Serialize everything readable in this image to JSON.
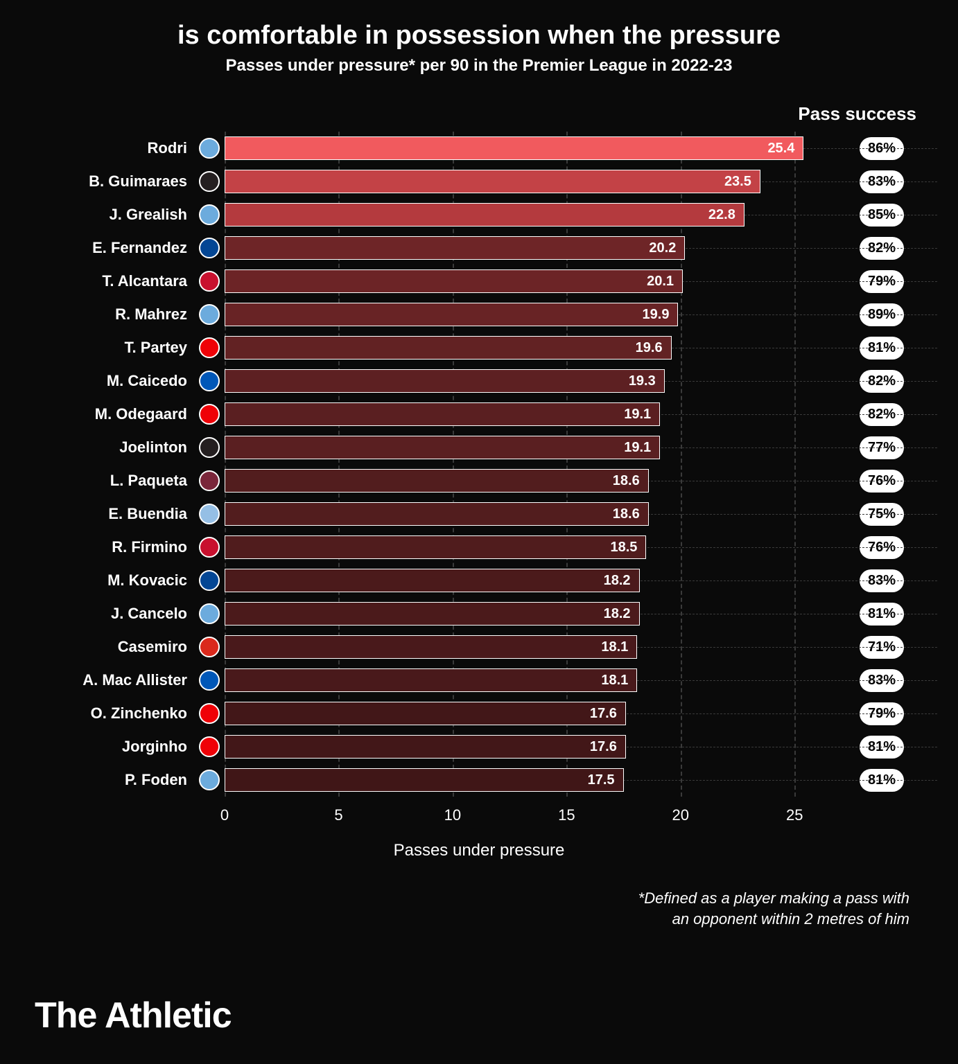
{
  "title": "is comfortable in possession when the pressure",
  "subtitle": "Passes under pressure* per 90 in the Premier League in 2022-23",
  "success_header": "Pass success",
  "x_label": "Passes under pressure",
  "footnote_line1": "*Defined as a player making a pass with",
  "footnote_line2": "an opponent within 2 metres of him",
  "brand": "The Athletic",
  "chart": {
    "type": "bar",
    "xlim": [
      0,
      27
    ],
    "xticks": [
      0,
      5,
      10,
      15,
      20,
      25
    ],
    "grid_color": "#3a3a3a",
    "background_color": "#0a0a0a",
    "bar_border_color": "#ffffff",
    "value_fontsize": 20,
    "label_fontsize": 22
  },
  "club_colors": {
    "mancity": "#6CABDD",
    "newcastle": "#241F20",
    "chelsea": "#034694",
    "liverpool": "#C8102E",
    "arsenal": "#EF0107",
    "brighton": "#0057B8",
    "westham": "#7A263A",
    "astonvilla": "#95BFE5",
    "manutd": "#DA291C"
  },
  "players": [
    {
      "name": "Rodri",
      "club": "mancity",
      "value": 25.4,
      "success": "86%",
      "color": "#f15a5e"
    },
    {
      "name": "B. Guimaraes",
      "club": "newcastle",
      "value": 23.5,
      "success": "83%",
      "color": "#c34246"
    },
    {
      "name": "J. Grealish",
      "club": "mancity",
      "value": 22.8,
      "success": "85%",
      "color": "#b43a3e"
    },
    {
      "name": "E. Fernandez",
      "club": "chelsea",
      "value": 20.2,
      "success": "82%",
      "color": "#6e2527"
    },
    {
      "name": "T. Alcantara",
      "club": "liverpool",
      "value": 20.1,
      "success": "79%",
      "color": "#6c2426"
    },
    {
      "name": "R. Mahrez",
      "club": "mancity",
      "value": 19.9,
      "success": "89%",
      "color": "#682325"
    },
    {
      "name": "T. Partey",
      "club": "arsenal",
      "value": 19.6,
      "success": "81%",
      "color": "#622223"
    },
    {
      "name": "M. Caicedo",
      "club": "brighton",
      "value": 19.3,
      "success": "82%",
      "color": "#5d2022"
    },
    {
      "name": "M. Odegaard",
      "club": "arsenal",
      "value": 19.1,
      "success": "82%",
      "color": "#5a1f21"
    },
    {
      "name": "Joelinton",
      "club": "newcastle",
      "value": 19.1,
      "success": "77%",
      "color": "#5a1f21"
    },
    {
      "name": "L. Paqueta",
      "club": "westham",
      "value": 18.6,
      "success": "76%",
      "color": "#521d1e"
    },
    {
      "name": "E. Buendia",
      "club": "astonvilla",
      "value": 18.6,
      "success": "75%",
      "color": "#521d1e"
    },
    {
      "name": "R. Firmino",
      "club": "liverpool",
      "value": 18.5,
      "success": "76%",
      "color": "#501c1d"
    },
    {
      "name": "M. Kovacic",
      "club": "chelsea",
      "value": 18.2,
      "success": "83%",
      "color": "#4b1a1b"
    },
    {
      "name": "J. Cancelo",
      "club": "mancity",
      "value": 18.2,
      "success": "81%",
      "color": "#4b1a1b"
    },
    {
      "name": "Casemiro",
      "club": "manutd",
      "value": 18.1,
      "success": "71%",
      "color": "#49191b"
    },
    {
      "name": "A. Mac Allister",
      "club": "brighton",
      "value": 18.1,
      "success": "83%",
      "color": "#49191b"
    },
    {
      "name": "O. Zinchenko",
      "club": "arsenal",
      "value": 17.6,
      "success": "79%",
      "color": "#421718"
    },
    {
      "name": "Jorginho",
      "club": "arsenal",
      "value": 17.6,
      "success": "81%",
      "color": "#421718"
    },
    {
      "name": "P. Foden",
      "club": "mancity",
      "value": 17.5,
      "success": "81%",
      "color": "#401617"
    }
  ]
}
